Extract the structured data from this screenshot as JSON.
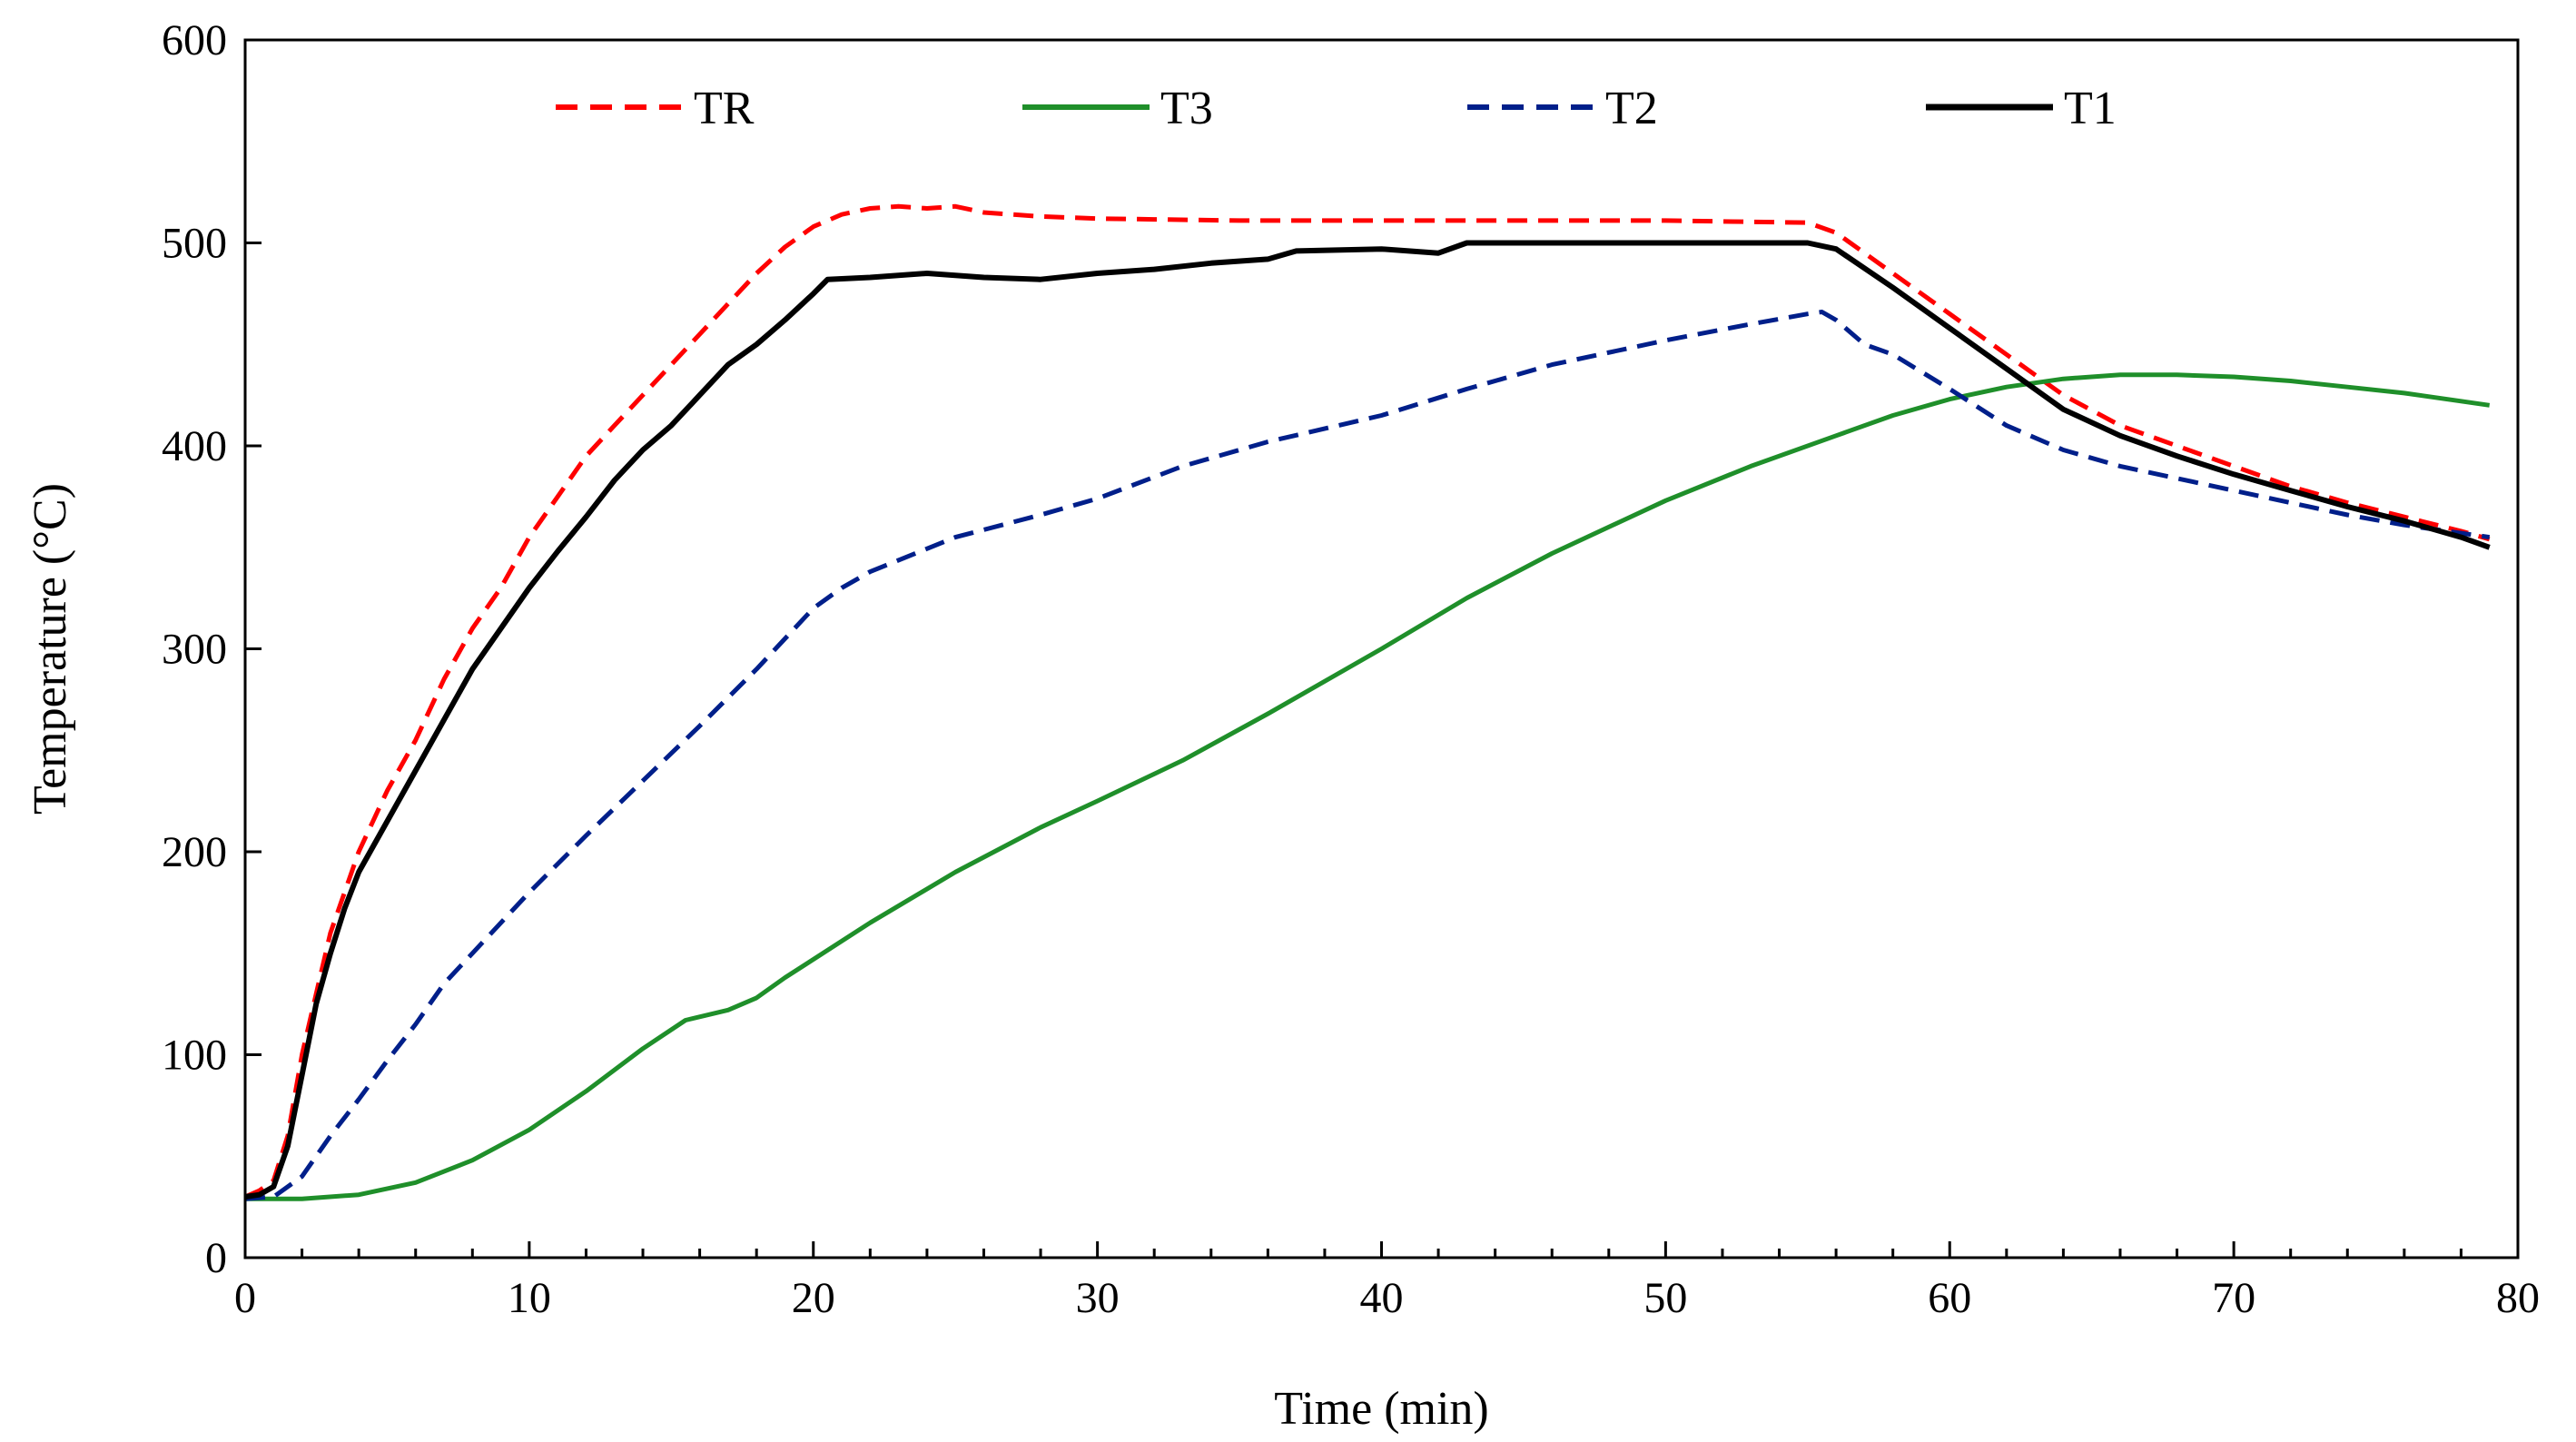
{
  "chart_data": {
    "type": "line",
    "title": "",
    "xlabel": "Time (min)",
    "ylabel": "Temperature (°C)",
    "xlim": [
      0,
      80
    ],
    "ylim": [
      0,
      600
    ],
    "xticks": [
      0,
      10,
      20,
      30,
      40,
      50,
      60,
      70,
      80
    ],
    "yticks": [
      0,
      100,
      200,
      300,
      400,
      500,
      600
    ],
    "grid": false,
    "legend_position": "top",
    "series": [
      {
        "name": "TR",
        "color": "#ff0000",
        "dash": "dashed",
        "x": [
          0,
          0.5,
          1,
          1.5,
          2,
          2.5,
          3,
          3.5,
          4,
          5,
          6,
          7,
          8,
          9,
          10,
          11,
          12,
          13,
          14,
          15,
          16,
          17,
          18,
          19,
          20,
          21,
          22,
          23,
          24,
          25,
          26,
          28,
          30,
          35,
          40,
          45,
          50,
          55,
          56,
          58,
          60,
          62,
          64,
          66,
          68,
          70,
          72,
          74,
          76,
          78,
          79
        ],
        "y": [
          30,
          33,
          38,
          60,
          100,
          130,
          160,
          180,
          200,
          230,
          255,
          285,
          310,
          330,
          355,
          375,
          395,
          410,
          425,
          440,
          455,
          470,
          485,
          498,
          508,
          514,
          517,
          518,
          517,
          518,
          515,
          513,
          512,
          511,
          511,
          511,
          511,
          510,
          505,
          485,
          465,
          445,
          425,
          410,
          400,
          390,
          380,
          372,
          365,
          358,
          354
        ]
      },
      {
        "name": "T3",
        "color": "#1f8f2a",
        "dash": "solid",
        "x": [
          0,
          2,
          4,
          6,
          8,
          10,
          12,
          14,
          15.5,
          17,
          18,
          19,
          20,
          22,
          25,
          28,
          30,
          33,
          36,
          40,
          43,
          46,
          50,
          53,
          56,
          58,
          60,
          62,
          64,
          66,
          68,
          70,
          72,
          74,
          76,
          78,
          79
        ],
        "y": [
          29,
          29,
          31,
          37,
          48,
          63,
          82,
          103,
          117,
          122,
          128,
          138,
          147,
          165,
          190,
          212,
          225,
          245,
          268,
          300,
          325,
          347,
          373,
          390,
          405,
          415,
          423,
          429,
          433,
          435,
          435,
          434,
          432,
          429,
          426,
          422,
          420
        ]
      },
      {
        "name": "T2",
        "color": "#001f8a",
        "dash": "dashed",
        "x": [
          0,
          1,
          2,
          3,
          4,
          5,
          6,
          7,
          8,
          10,
          12,
          14,
          16,
          18,
          20,
          21,
          22,
          25,
          28,
          30,
          33,
          36,
          40,
          43,
          46,
          50,
          53,
          55,
          55.5,
          56,
          57,
          58,
          60,
          62,
          64,
          66,
          68,
          70,
          72,
          74,
          76,
          78,
          79
        ],
        "y": [
          29,
          30,
          40,
          60,
          78,
          97,
          115,
          135,
          150,
          180,
          208,
          235,
          262,
          290,
          320,
          330,
          338,
          355,
          366,
          374,
          390,
          402,
          415,
          428,
          440,
          452,
          460,
          465,
          466,
          462,
          450,
          445,
          428,
          410,
          398,
          390,
          384,
          378,
          372,
          366,
          361,
          357,
          355
        ]
      },
      {
        "name": "T1",
        "color": "#000000",
        "dash": "solid",
        "x": [
          0,
          0.5,
          1,
          1.5,
          2,
          2.5,
          3,
          3.5,
          4,
          5,
          6,
          7,
          8,
          9,
          10,
          11,
          12,
          13,
          14,
          15,
          16,
          17,
          18,
          19,
          20,
          20.5,
          22,
          24,
          26,
          28,
          30,
          32,
          34,
          36,
          37,
          40,
          42,
          43,
          45,
          50,
          55,
          56,
          58,
          60,
          62,
          64,
          66,
          68,
          70,
          72,
          74,
          76,
          78,
          79
        ],
        "y": [
          30,
          31,
          35,
          55,
          90,
          125,
          150,
          172,
          190,
          215,
          240,
          265,
          290,
          310,
          330,
          348,
          365,
          383,
          398,
          410,
          425,
          440,
          450,
          462,
          475,
          482,
          483,
          485,
          483,
          482,
          485,
          487,
          490,
          492,
          496,
          497,
          495,
          500,
          500,
          500,
          500,
          497,
          478,
          458,
          438,
          418,
          405,
          395,
          386,
          378,
          370,
          363,
          355,
          350
        ]
      }
    ]
  }
}
